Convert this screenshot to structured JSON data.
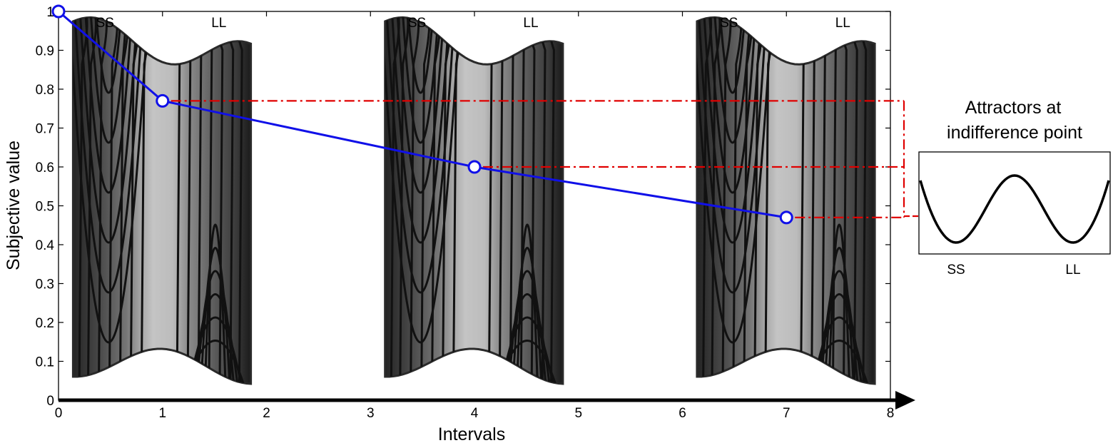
{
  "chart_data": [
    {
      "type": "line",
      "title": "",
      "xlabel": "Intervals",
      "ylabel": "Subjective value",
      "xlim": [
        0,
        8
      ],
      "ylim": [
        0,
        1
      ],
      "xticks": [
        "0",
        "1",
        "2",
        "3",
        "4",
        "5",
        "6",
        "7",
        "8"
      ],
      "yticks": [
        "0",
        "0.1",
        "0.2",
        "0.3",
        "0.4",
        "0.5",
        "0.6",
        "0.7",
        "0.8",
        "0.9",
        "1"
      ],
      "grid": false,
      "series": [
        {
          "x": [
            0,
            1,
            4,
            7
          ],
          "y": [
            1.0,
            0.77,
            0.6,
            0.47
          ],
          "color": "#1010e8",
          "marker": "open-circle"
        }
      ],
      "reference_lines": [
        {
          "from_x": 1,
          "y": 0.77,
          "color": "#e00000",
          "style": "dash-dot"
        },
        {
          "from_x": 4,
          "y": 0.6,
          "color": "#e00000",
          "style": "dash-dot"
        },
        {
          "from_x": 7,
          "y": 0.47,
          "color": "#e00000",
          "style": "dash-dot"
        }
      ],
      "contour_panels": [
        {
          "x_range": [
            0.14,
            1.85
          ],
          "labels": [
            "SS",
            "LL"
          ]
        },
        {
          "x_range": [
            3.14,
            4.85
          ],
          "labels": [
            "SS",
            "LL"
          ]
        },
        {
          "x_range": [
            6.14,
            7.85
          ],
          "labels": [
            "SS",
            "LL"
          ]
        }
      ]
    },
    {
      "type": "line",
      "title": "Attractors at indifference point",
      "title_lines": [
        "Attractors at",
        "indifference point"
      ],
      "categories": [
        "SS",
        "LL"
      ],
      "curve": "double-well potential, minima at SS and LL"
    }
  ]
}
